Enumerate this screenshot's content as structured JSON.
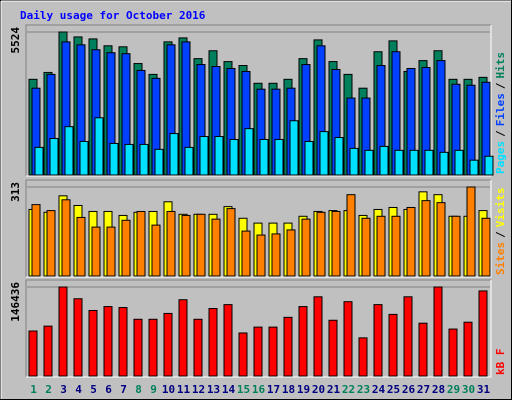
{
  "chart_data": [
    {
      "type": "bar",
      "title": "Daily usage for October 2016",
      "legend_separator": "/",
      "ylim": [
        0,
        5524
      ],
      "yticks": [
        5524
      ],
      "series": [
        {
          "name": "Pages",
          "color": "#00e0ff",
          "values": [
            1067,
            1410,
            1867,
            1295,
            2210,
            1219,
            1181,
            1181,
            991,
            1600,
            1067,
            1486,
            1486,
            1372,
            1791,
            1372,
            1372,
            2096,
            1295,
            1676,
            1448,
            1029,
            953,
            1105,
            953,
            953,
            953,
            876,
            953,
            572,
            724
          ]
        },
        {
          "name": "Files",
          "color": "#0040ff",
          "values": [
            3353,
            3886,
            5143,
            5029,
            4839,
            4724,
            4686,
            4039,
            3734,
            5029,
            5143,
            4267,
            4191,
            4115,
            4000,
            3315,
            3315,
            3353,
            4267,
            4991,
            4077,
            2972,
            2972,
            4229,
            4762,
            4115,
            4153,
            4420,
            3505,
            3467,
            3581
          ]
        },
        {
          "name": "Hits",
          "color": "#00805c",
          "values": [
            3696,
            3962,
            5524,
            5334,
            5257,
            4991,
            4953,
            4305,
            3886,
            5143,
            5296,
            4495,
            4800,
            4381,
            4229,
            3543,
            3543,
            3696,
            4495,
            5219,
            4381,
            3886,
            3353,
            4762,
            5181,
            4000,
            4419,
            4800,
            3696,
            3696,
            3772
          ]
        }
      ]
    },
    {
      "type": "bar",
      "legend_separator": "/",
      "ylim": [
        0,
        313
      ],
      "yticks": [
        313
      ],
      "series": [
        {
          "name": "Sites",
          "color": "#ff8000",
          "values": [
            251,
            230,
            268,
            206,
            172,
            172,
            196,
            227,
            179,
            227,
            213,
            217,
            200,
            237,
            158,
            144,
            148,
            162,
            200,
            224,
            227,
            286,
            203,
            210,
            210,
            241,
            265,
            258,
            210,
            313,
            203
          ]
        },
        {
          "name": "Visits",
          "color": "#ffff00",
          "values": [
            234,
            224,
            282,
            248,
            227,
            227,
            213,
            224,
            227,
            261,
            217,
            217,
            217,
            244,
            203,
            186,
            186,
            186,
            210,
            227,
            230,
            230,
            213,
            234,
            241,
            234,
            296,
            286,
            210,
            210,
            230
          ]
        }
      ]
    },
    {
      "type": "bar",
      "ylim": [
        0,
        146436
      ],
      "yticks": [
        146436
      ],
      "categories": [
        "1",
        "2",
        "3",
        "4",
        "5",
        "6",
        "7",
        "8",
        "9",
        "10",
        "11",
        "12",
        "13",
        "14",
        "15",
        "16",
        "17",
        "18",
        "19",
        "20",
        "21",
        "22",
        "23",
        "24",
        "25",
        "26",
        "27",
        "28",
        "29",
        "30",
        "31"
      ],
      "category_colors": [
        "#00805c",
        "#00805c",
        "#000080",
        "#000080",
        "#000080",
        "#000080",
        "#000080",
        "#00805c",
        "#00805c",
        "#000080",
        "#000080",
        "#000080",
        "#000080",
        "#000080",
        "#00805c",
        "#00805c",
        "#000080",
        "#000080",
        "#000080",
        "#000080",
        "#000080",
        "#00805c",
        "#00805c",
        "#000080",
        "#000080",
        "#000080",
        "#000080",
        "#000080",
        "#00805c",
        "#00805c",
        "#000080"
      ],
      "series": [
        {
          "name": "kB F",
          "color": "#ff0000",
          "values": [
            74014,
            82059,
            146436,
            127111,
            107803,
            114239,
            112630,
            93322,
            93322,
            102976,
            125502,
            93322,
            111021,
            117457,
            70796,
            80450,
            80450,
            96540,
            114239,
            130329,
            91713,
            122284,
            62751,
            117457,
            101367,
            130329,
            86886,
            146436,
            77232,
            88495,
            139983
          ]
        }
      ]
    }
  ]
}
